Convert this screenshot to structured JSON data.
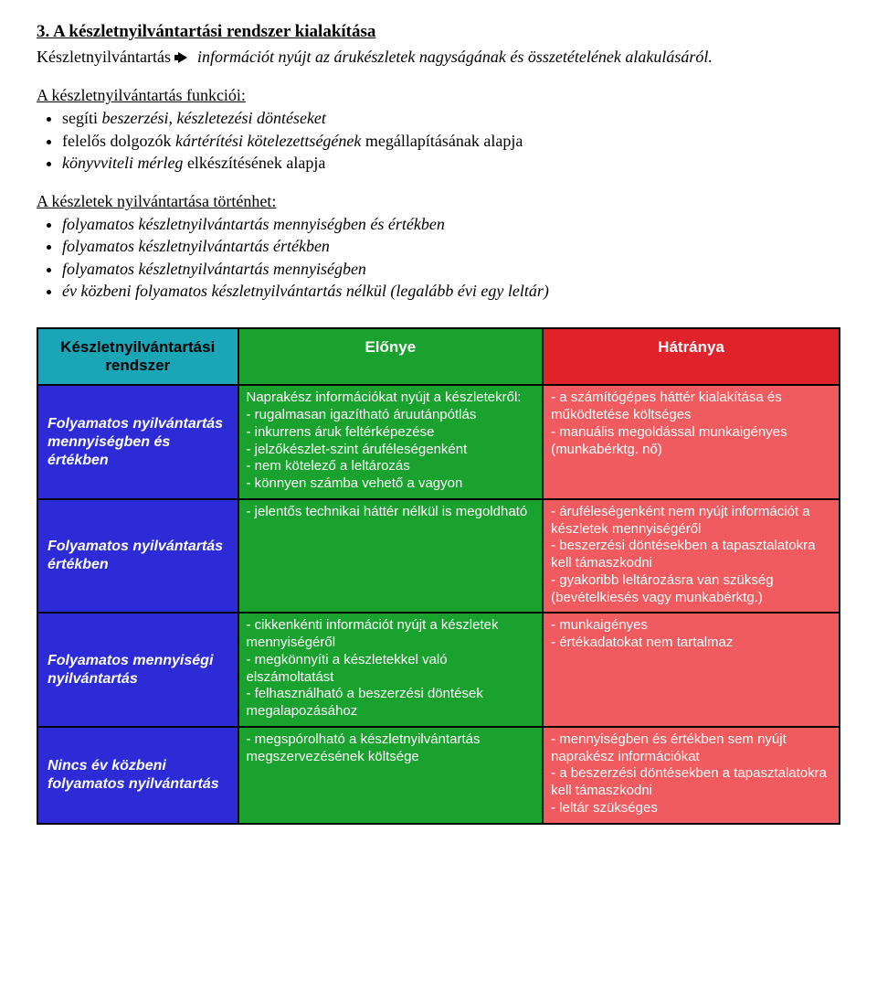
{
  "colors": {
    "col1_bg": "#1aa6b7",
    "col2_bg": "#19a22e",
    "col3_bg": "#e0232a",
    "row_bg": "#2d2bd6",
    "adv_bg": "#19a22e",
    "dis_bg": "#ef5b5f"
  },
  "section": {
    "title": "3. A készletnyilvántartási rendszer kialakítása",
    "lead": "Készletnyilvántartás",
    "intro_rest": "információt nyújt az árukészletek nagyságának és összetételének alakulásáról."
  },
  "funcs": {
    "heading": "A készletnyilvántartás funkciói:",
    "items": [
      {
        "pre": "segíti ",
        "ital": "beszerzési, készletezési döntéseket"
      },
      {
        "pre": "felelős dolgozók ",
        "ital": "kártérítési kötelezettségének",
        "post": " megállapításának alapja"
      },
      {
        "ital": "könyvviteli mérleg",
        "post": " elkészítésének alapja"
      }
    ]
  },
  "methods": {
    "heading": "A készletek nyilvántartása történhet:",
    "items": [
      "folyamatos készletnyilvántartás mennyiségben és értékben",
      "folyamatos készletnyilvántartás értékben",
      "folyamatos készletnyilvántartás mennyiségben",
      "év közbeni folyamatos készletnyilvántartás nélkül (legalább évi egy leltár)"
    ]
  },
  "table": {
    "col_widths": [
      "25%",
      "38%",
      "37%"
    ],
    "headers": [
      "Készletnyilvántartási rendszer",
      "Előnye",
      "Hátránya"
    ],
    "rows": [
      {
        "label": "Folyamatos nyilvántartás mennyiségben és értékben",
        "adv": "Naprakész információkat nyújt a készletekről:\n- rugalmasan igazítható áruutánpótlás\n- inkurrens áruk feltérképezése\n- jelzőkészlet-szint áruféleségenként\n- nem kötelező a leltározás\n- könnyen számba vehető a vagyon",
        "dis": "- a számítógépes háttér kialakítása és működtetése költséges\n- manuális megoldással munkaigényes (munkabérktg. nő)"
      },
      {
        "label": "Folyamatos nyilvántartás értékben",
        "adv": "- jelentős technikai háttér nélkül is megoldható",
        "dis": "- áruféleségenként nem nyújt információt a készletek mennyiségéről\n- beszerzési döntésekben a tapasztalatokra kell támaszkodni\n- gyakoribb leltározásra van szükség (bevételkiesés vagy munkabérktg.)"
      },
      {
        "label": "Folyamatos mennyiségi nyilvántartás",
        "adv": "- cikkenkénti információt nyújt a készletek mennyiségéről\n- megkönnyíti a készletekkel való elszámoltatást\n- felhasználható a beszerzési döntések megalapozásához",
        "dis": "- munkaigényes\n- értékadatokat nem tartalmaz"
      },
      {
        "label": "Nincs év közbeni folyamatos nyilvántartás",
        "adv": "- megspórolható a készletnyilvántartás megszervezésének költsége",
        "dis": "- mennyiségben és értékben sem nyújt naprakész információkat\n- a beszerzési döntésekben a tapasztalatokra kell támaszkodni\n- leltár szükséges"
      }
    ]
  }
}
